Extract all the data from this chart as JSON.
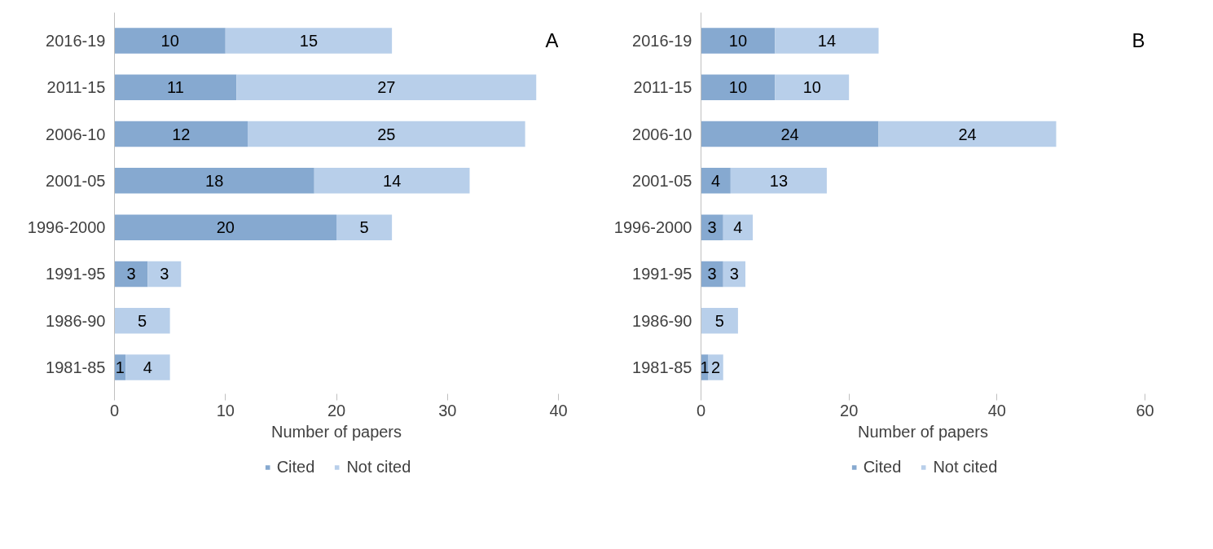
{
  "chart_data": [
    {
      "type": "bar",
      "orientation": "horizontal",
      "stacked": true,
      "xlabel": "Number of papers",
      "annotations": [
        "A"
      ],
      "categories": [
        "2016-19",
        "2011-15",
        "2006-10",
        "2001-05",
        "1996-2000",
        "1991-95",
        "1986-90",
        "1981-85"
      ],
      "xlim": [
        0,
        40
      ],
      "xticks": [
        0,
        10,
        20,
        30,
        40
      ],
      "grid": false,
      "legend": "bottom",
      "data_labels": true,
      "series": [
        {
          "name": "Cited",
          "color": "#86a9d0",
          "values": [
            10,
            11,
            12,
            18,
            20,
            3,
            null,
            1
          ]
        },
        {
          "name": "Not cited",
          "color": "#b8cfea",
          "values": [
            15,
            27,
            25,
            14,
            5,
            3,
            5,
            4
          ]
        }
      ]
    },
    {
      "type": "bar",
      "orientation": "horizontal",
      "stacked": true,
      "xlabel": "Number of papers",
      "annotations": [
        "B"
      ],
      "categories": [
        "2016-19",
        "2011-15",
        "2006-10",
        "2001-05",
        "1996-2000",
        "1991-95",
        "1986-90",
        "1981-85"
      ],
      "xlim": [
        0,
        60
      ],
      "xticks": [
        0,
        20,
        40,
        60
      ],
      "grid": false,
      "legend": "bottom",
      "data_labels": true,
      "series": [
        {
          "name": "Cited",
          "color": "#86a9d0",
          "values": [
            10,
            10,
            24,
            4,
            3,
            3,
            null,
            1
          ]
        },
        {
          "name": "Not cited",
          "color": "#b8cfea",
          "values": [
            14,
            10,
            24,
            13,
            4,
            3,
            5,
            2
          ]
        }
      ]
    }
  ]
}
